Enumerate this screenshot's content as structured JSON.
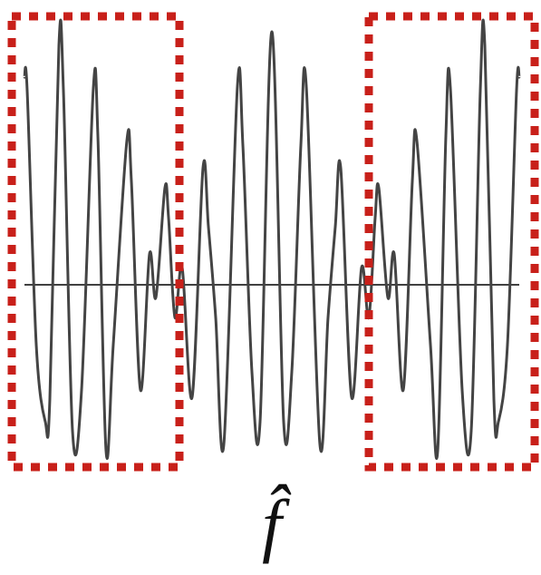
{
  "label": "f̂"
}
